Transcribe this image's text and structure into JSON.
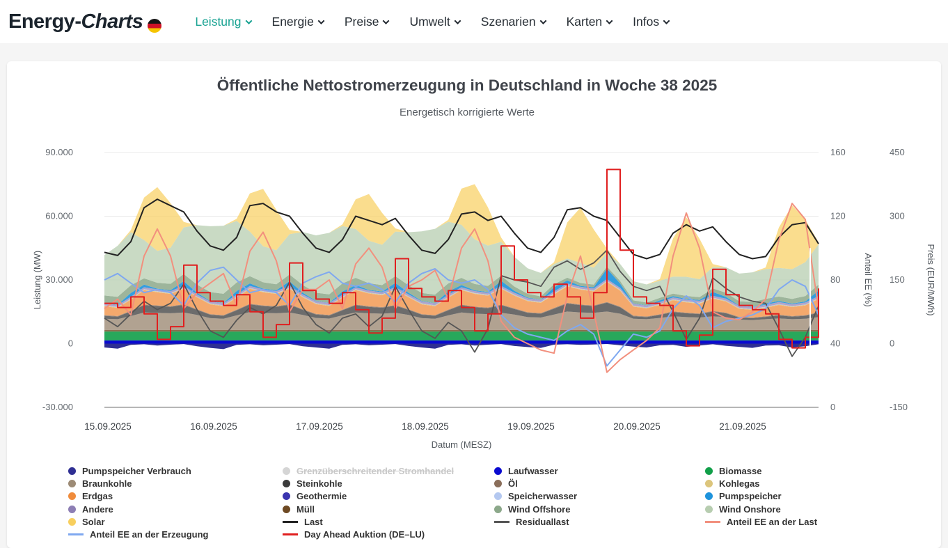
{
  "header": {
    "logo": {
      "part1": "Energy-",
      "part2": "Charts"
    },
    "nav": [
      {
        "label": "Leistung",
        "active": true
      },
      {
        "label": "Energie",
        "active": false
      },
      {
        "label": "Preise",
        "active": false
      },
      {
        "label": "Umwelt",
        "active": false
      },
      {
        "label": "Szenarien",
        "active": false
      },
      {
        "label": "Karten",
        "active": false
      },
      {
        "label": "Infos",
        "active": false
      }
    ]
  },
  "chart": {
    "title": "Öffentliche Nettostromerzeugung in Deutschland in Woche 38 2025",
    "subtitle": "Energetisch korrigierte Werte",
    "axes": {
      "left": {
        "title": "Leistung (MW)",
        "ticks": [
          "90.000",
          "60.000",
          "30.000",
          "0",
          "-30.000"
        ]
      },
      "right_share": {
        "title": "Anteil EE (%)",
        "ticks": [
          "160",
          "120",
          "80",
          "40",
          "0"
        ]
      },
      "right_price": {
        "title": "Preis (EUR/MWh)",
        "ticks": [
          "450",
          "300",
          "150",
          "0",
          "-150"
        ]
      },
      "x": {
        "title": "Datum (MESZ)",
        "ticks": [
          "15.09.2025",
          "16.09.2025",
          "17.09.2025",
          "18.09.2025",
          "19.09.2025",
          "20.09.2025",
          "21.09.2025"
        ]
      }
    },
    "legend": [
      {
        "label": "Pumpspeicher Verbrauch",
        "type": "dot",
        "color": "#2f2f93"
      },
      {
        "label": "Grenzüberschreitender Stromhandel",
        "type": "dot",
        "color": "#d5d5d5",
        "disabled": true
      },
      {
        "label": "Laufwasser",
        "type": "dot",
        "color": "#0a0ad0"
      },
      {
        "label": "Biomasse",
        "type": "dot",
        "color": "#119f49"
      },
      {
        "label": "Braunkohle",
        "type": "dot",
        "color": "#9d8b76"
      },
      {
        "label": "Steinkohle",
        "type": "dot",
        "color": "#3b3b3b"
      },
      {
        "label": "Öl",
        "type": "dot",
        "color": "#8a6e5a"
      },
      {
        "label": "Kohlegas",
        "type": "dot",
        "color": "#dcc57c"
      },
      {
        "label": "Erdgas",
        "type": "dot",
        "color": "#f08c3c"
      },
      {
        "label": "Geothermie",
        "type": "dot",
        "color": "#3b35b0"
      },
      {
        "label": "Speicherwasser",
        "type": "dot",
        "color": "#b4c8f0"
      },
      {
        "label": "Pumpspeicher",
        "type": "dot",
        "color": "#1e93dc"
      },
      {
        "label": "Andere",
        "type": "dot",
        "color": "#8d7eb4"
      },
      {
        "label": "Müll",
        "type": "dot",
        "color": "#6e4a23"
      },
      {
        "label": "Wind Offshore",
        "type": "dot",
        "color": "#8ca88a"
      },
      {
        "label": "Wind Onshore",
        "type": "dot",
        "color": "#b7cdb0"
      },
      {
        "label": "Solar",
        "type": "dot",
        "color": "#f8cf5e"
      },
      {
        "label": "Last",
        "type": "line",
        "color": "#222222"
      },
      {
        "label": "Residuallast",
        "type": "line",
        "color": "#555555"
      },
      {
        "label": "Anteil EE an der Last",
        "type": "line",
        "color": "#f2907e"
      },
      {
        "label": "Anteil EE an der Erzeugung",
        "type": "line",
        "color": "#7fa8f0"
      },
      {
        "label": "Day Ahead Auktion (DE–LU)",
        "type": "line",
        "color": "#e01f1f"
      }
    ]
  },
  "chart_data": {
    "type": "area",
    "title": "Öffentliche Nettostromerzeugung in Deutschland in Woche 38 2025",
    "x_start": "15.09.2025 00:00",
    "x_step_hours": 3,
    "n_points": 55,
    "axis_ranges": {
      "mw": [
        -30000,
        90000
      ],
      "pct": [
        0,
        160
      ],
      "price": [
        -150,
        450
      ]
    },
    "grid": true,
    "legend_position": "bottom",
    "stack_areas": [
      {
        "name": "Laufwasser",
        "color": "#0a0ad0",
        "opacity": 1.0,
        "values": 1500
      },
      {
        "name": "Biomasse",
        "color": "#119f49",
        "opacity": 0.9,
        "values": 4200
      },
      {
        "name": "Müll",
        "color": "#6e4a23",
        "opacity": 0.8,
        "values": 800
      },
      {
        "name": "Braunkohle",
        "color": "#9d8b76",
        "opacity": 0.8,
        "values": [
          5200,
          5000,
          6500,
          8200,
          8000,
          7800,
          8200,
          7000,
          5500,
          5200,
          6800,
          8400,
          8000,
          7800,
          8200,
          7000,
          5600,
          5300,
          6800,
          8200,
          7800,
          7600,
          8000,
          7000,
          5500,
          5200,
          6800,
          8200,
          7600,
          7400,
          8000,
          7200,
          6000,
          5800,
          7200,
          8600,
          8200,
          8000,
          8600,
          7600,
          5200,
          5000,
          5600,
          6400,
          6000,
          5800,
          6400,
          6000,
          4800,
          4600,
          5000,
          5400,
          5000,
          5200,
          6000
        ]
      },
      {
        "name": "Steinkohle",
        "color": "#3b3b3b",
        "opacity": 0.75,
        "values": [
          1400,
          1200,
          2200,
          3400,
          3200,
          3000,
          3600,
          2400,
          1600,
          1400,
          2400,
          3600,
          3200,
          3000,
          3600,
          2400,
          1600,
          1400,
          2400,
          3400,
          3000,
          2800,
          3400,
          2400,
          1600,
          1400,
          2400,
          3400,
          3000,
          2800,
          3600,
          2600,
          2000,
          1800,
          2800,
          3800,
          3400,
          3200,
          4200,
          3000,
          1200,
          1000,
          1400,
          2000,
          1800,
          1600,
          2200,
          1800,
          1000,
          900,
          1100,
          1400,
          1200,
          1400,
          2000
        ]
      },
      {
        "name": "Öl",
        "color": "#8a6e5a",
        "opacity": 0.8,
        "values": 300
      },
      {
        "name": "Erdgas",
        "color": "#f08c3c",
        "opacity": 0.75,
        "values": [
          4200,
          3800,
          5200,
          6800,
          6200,
          5800,
          7200,
          5600,
          4600,
          4200,
          5600,
          7000,
          6200,
          5800,
          7200,
          5600,
          4600,
          4200,
          5600,
          6800,
          6000,
          5600,
          7000,
          5600,
          4600,
          4200,
          5600,
          6800,
          6000,
          5600,
          7400,
          6000,
          5200,
          4800,
          6400,
          7800,
          7000,
          6600,
          9500,
          7500,
          4200,
          3800,
          4400,
          5200,
          4800,
          4600,
          5800,
          5200,
          3800,
          3600,
          4000,
          4600,
          4200,
          4600,
          6200
        ]
      },
      {
        "name": "Kohlegas",
        "color": "#dcc57c",
        "opacity": 0.85,
        "values": 300
      },
      {
        "name": "Geothermie",
        "color": "#3b35b0",
        "opacity": 0.9,
        "values": 20
      },
      {
        "name": "Speicherwasser",
        "color": "#b4c8f0",
        "opacity": 0.9,
        "values": 150
      },
      {
        "name": "Andere",
        "color": "#8d7eb4",
        "opacity": 0.7,
        "values": 900
      },
      {
        "name": "Pumpspeicher",
        "color": "#1e93dc",
        "opacity": 0.9,
        "values": [
          200,
          100,
          1800,
          1200,
          300,
          400,
          2200,
          800,
          200,
          100,
          1800,
          1200,
          300,
          400,
          2200,
          800,
          200,
          100,
          1600,
          1000,
          300,
          400,
          2000,
          800,
          200,
          100,
          1600,
          1000,
          300,
          400,
          2400,
          900,
          300,
          100,
          2000,
          1400,
          400,
          600,
          4800,
          2000,
          200,
          100,
          800,
          600,
          300,
          400,
          1800,
          900,
          200,
          100,
          600,
          500,
          300,
          500,
          2600
        ]
      },
      {
        "name": "Wind Offshore",
        "color": "#8ca88a",
        "opacity": 0.85,
        "values": [
          3500,
          3800,
          3600,
          3000,
          2800,
          3000,
          3400,
          3800,
          4200,
          4400,
          4000,
          3400,
          3000,
          2800,
          3200,
          3600,
          3800,
          4000,
          3800,
          3400,
          3200,
          3000,
          3200,
          3500,
          3800,
          4000,
          3800,
          3400,
          3000,
          2800,
          2400,
          2000,
          1800,
          1600,
          1400,
          1300,
          1400,
          1200,
          1000,
          1200,
          1400,
          1300,
          1200,
          1200,
          1400,
          1300,
          1600,
          1900,
          2000,
          2200,
          2200,
          2100,
          2200,
          2500,
          2800
        ]
      },
      {
        "name": "Wind Onshore",
        "color": "#b7cdb0",
        "opacity": 0.75,
        "values": [
          19000,
          24000,
          25000,
          18000,
          15000,
          17000,
          22000,
          28000,
          31000,
          32000,
          29000,
          21000,
          17000,
          16000,
          19000,
          25000,
          27000,
          29000,
          27000,
          23000,
          20000,
          19000,
          21000,
          25000,
          29000,
          31000,
          29000,
          25000,
          21000,
          19000,
          16000,
          14000,
          12000,
          11000,
          9500,
          9000,
          9500,
          8000,
          6500,
          8000,
          9000,
          8500,
          8000,
          8000,
          9000,
          8500,
          10000,
          12000,
          13000,
          14000,
          14000,
          13500,
          14000,
          16000,
          19000
        ]
      },
      {
        "name": "Solar",
        "color": "#f8cf5e",
        "opacity": 0.7,
        "values": [
          0,
          0,
          1000,
          20000,
          30000,
          21000,
          2500,
          0,
          0,
          0,
          1000,
          18000,
          27000,
          19000,
          2000,
          0,
          0,
          0,
          800,
          14000,
          22000,
          15000,
          1500,
          0,
          0,
          0,
          900,
          17000,
          26000,
          18000,
          2000,
          0,
          0,
          0,
          900,
          17000,
          26000,
          18000,
          2000,
          0,
          0,
          0,
          800,
          18000,
          28000,
          19000,
          1500,
          0,
          0,
          0,
          800,
          19000,
          30000,
          20000,
          1000
        ]
      }
    ],
    "negative_areas": [
      {
        "name": "Pumpspeicher Verbrauch",
        "color": "#2f2f93",
        "opacity": 1.0,
        "values": [
          -1800,
          -2400,
          -600,
          -300,
          -900,
          -500,
          -200,
          -1200,
          -2000,
          -2600,
          -600,
          -300,
          -800,
          -500,
          -200,
          -1200,
          -1800,
          -2400,
          -600,
          -300,
          -800,
          -500,
          -200,
          -1100,
          -1800,
          -2400,
          -600,
          -300,
          -900,
          -500,
          -200,
          -1100,
          -1600,
          -2000,
          -500,
          -300,
          -600,
          -400,
          -150,
          -800,
          -1400,
          -1800,
          -800,
          -600,
          -1500,
          -900,
          -300,
          -1000,
          -1500,
          -2000,
          -900,
          -800,
          -1800,
          -1200,
          -300
        ]
      }
    ],
    "lines": [
      {
        "name": "Last",
        "axis": "mw",
        "color": "#222222",
        "width": 2,
        "values": [
          43000,
          41500,
          48000,
          64000,
          68000,
          65000,
          62000,
          53000,
          46000,
          44000,
          50000,
          65000,
          66000,
          62000,
          60000,
          52000,
          45000,
          43000,
          49000,
          60000,
          58000,
          56000,
          59000,
          51000,
          44000,
          42500,
          49000,
          61000,
          62000,
          58000,
          60000,
          52000,
          45000,
          43000,
          50000,
          63000,
          64000,
          60000,
          58000,
          50000,
          42000,
          40000,
          42000,
          52000,
          56000,
          53000,
          55000,
          48000,
          42000,
          40000,
          41000,
          50000,
          56000,
          57000,
          47000
        ]
      },
      {
        "name": "Residuallast",
        "axis": "mw",
        "color": "#555555",
        "width": 1.8,
        "values": [
          12000,
          8000,
          14000,
          20000,
          16000,
          19000,
          28000,
          16000,
          6000,
          3000,
          11000,
          17000,
          14000,
          18000,
          29000,
          17000,
          9000,
          5000,
          12000,
          14000,
          8000,
          13000,
          27000,
          16000,
          6000,
          2500,
          10000,
          6000,
          -4000,
          7000,
          32000,
          30000,
          29000,
          27000,
          36000,
          39000,
          35000,
          38000,
          44000,
          34000,
          27000,
          25000,
          27000,
          15000,
          2000,
          12000,
          31000,
          26000,
          22000,
          20000,
          19000,
          7000,
          -6000,
          3000,
          18000
        ]
      },
      {
        "name": "Anteil EE an der Erzeugung",
        "axis": "pct",
        "color": "#7fa8f0",
        "width": 2,
        "values": [
          80,
          84,
          78,
          72,
          74,
          72,
          64,
          78,
          86,
          88,
          80,
          72,
          74,
          72,
          64,
          78,
          82,
          85,
          78,
          76,
          78,
          74,
          66,
          78,
          84,
          87,
          80,
          78,
          80,
          74,
          58,
          50,
          46,
          44,
          42,
          48,
          52,
          46,
          26,
          36,
          46,
          44,
          48,
          62,
          70,
          64,
          50,
          54,
          56,
          58,
          62,
          74,
          80,
          76,
          58
        ]
      },
      {
        "name": "Anteil EE an der Last",
        "axis": "pct",
        "color": "#f2907e",
        "width": 2,
        "values": [
          62,
          68,
          58,
          95,
          112,
          95,
          62,
          72,
          78,
          84,
          64,
          98,
          110,
          92,
          60,
          74,
          74,
          80,
          62,
          90,
          100,
          88,
          62,
          76,
          80,
          86,
          68,
          100,
          112,
          92,
          54,
          44,
          40,
          36,
          34,
          70,
          95,
          60,
          22,
          30,
          36,
          42,
          50,
          95,
          122,
          100,
          60,
          56,
          55,
          60,
          68,
          105,
          128,
          118,
          62
        ]
      },
      {
        "name": "Day Ahead Auktion (DE–LU)",
        "axis": "price",
        "color": "#e01f1f",
        "width": 2,
        "step": true,
        "values": [
          95,
          85,
          110,
          70,
          10,
          40,
          185,
          120,
          100,
          90,
          115,
          75,
          15,
          45,
          190,
          125,
          105,
          95,
          120,
          80,
          25,
          60,
          200,
          130,
          110,
          100,
          125,
          85,
          30,
          70,
          230,
          150,
          120,
          110,
          140,
          110,
          60,
          120,
          410,
          220,
          110,
          95,
          90,
          30,
          -5,
          20,
          175,
          115,
          90,
          80,
          70,
          10,
          -10,
          15,
          130
        ]
      }
    ]
  }
}
